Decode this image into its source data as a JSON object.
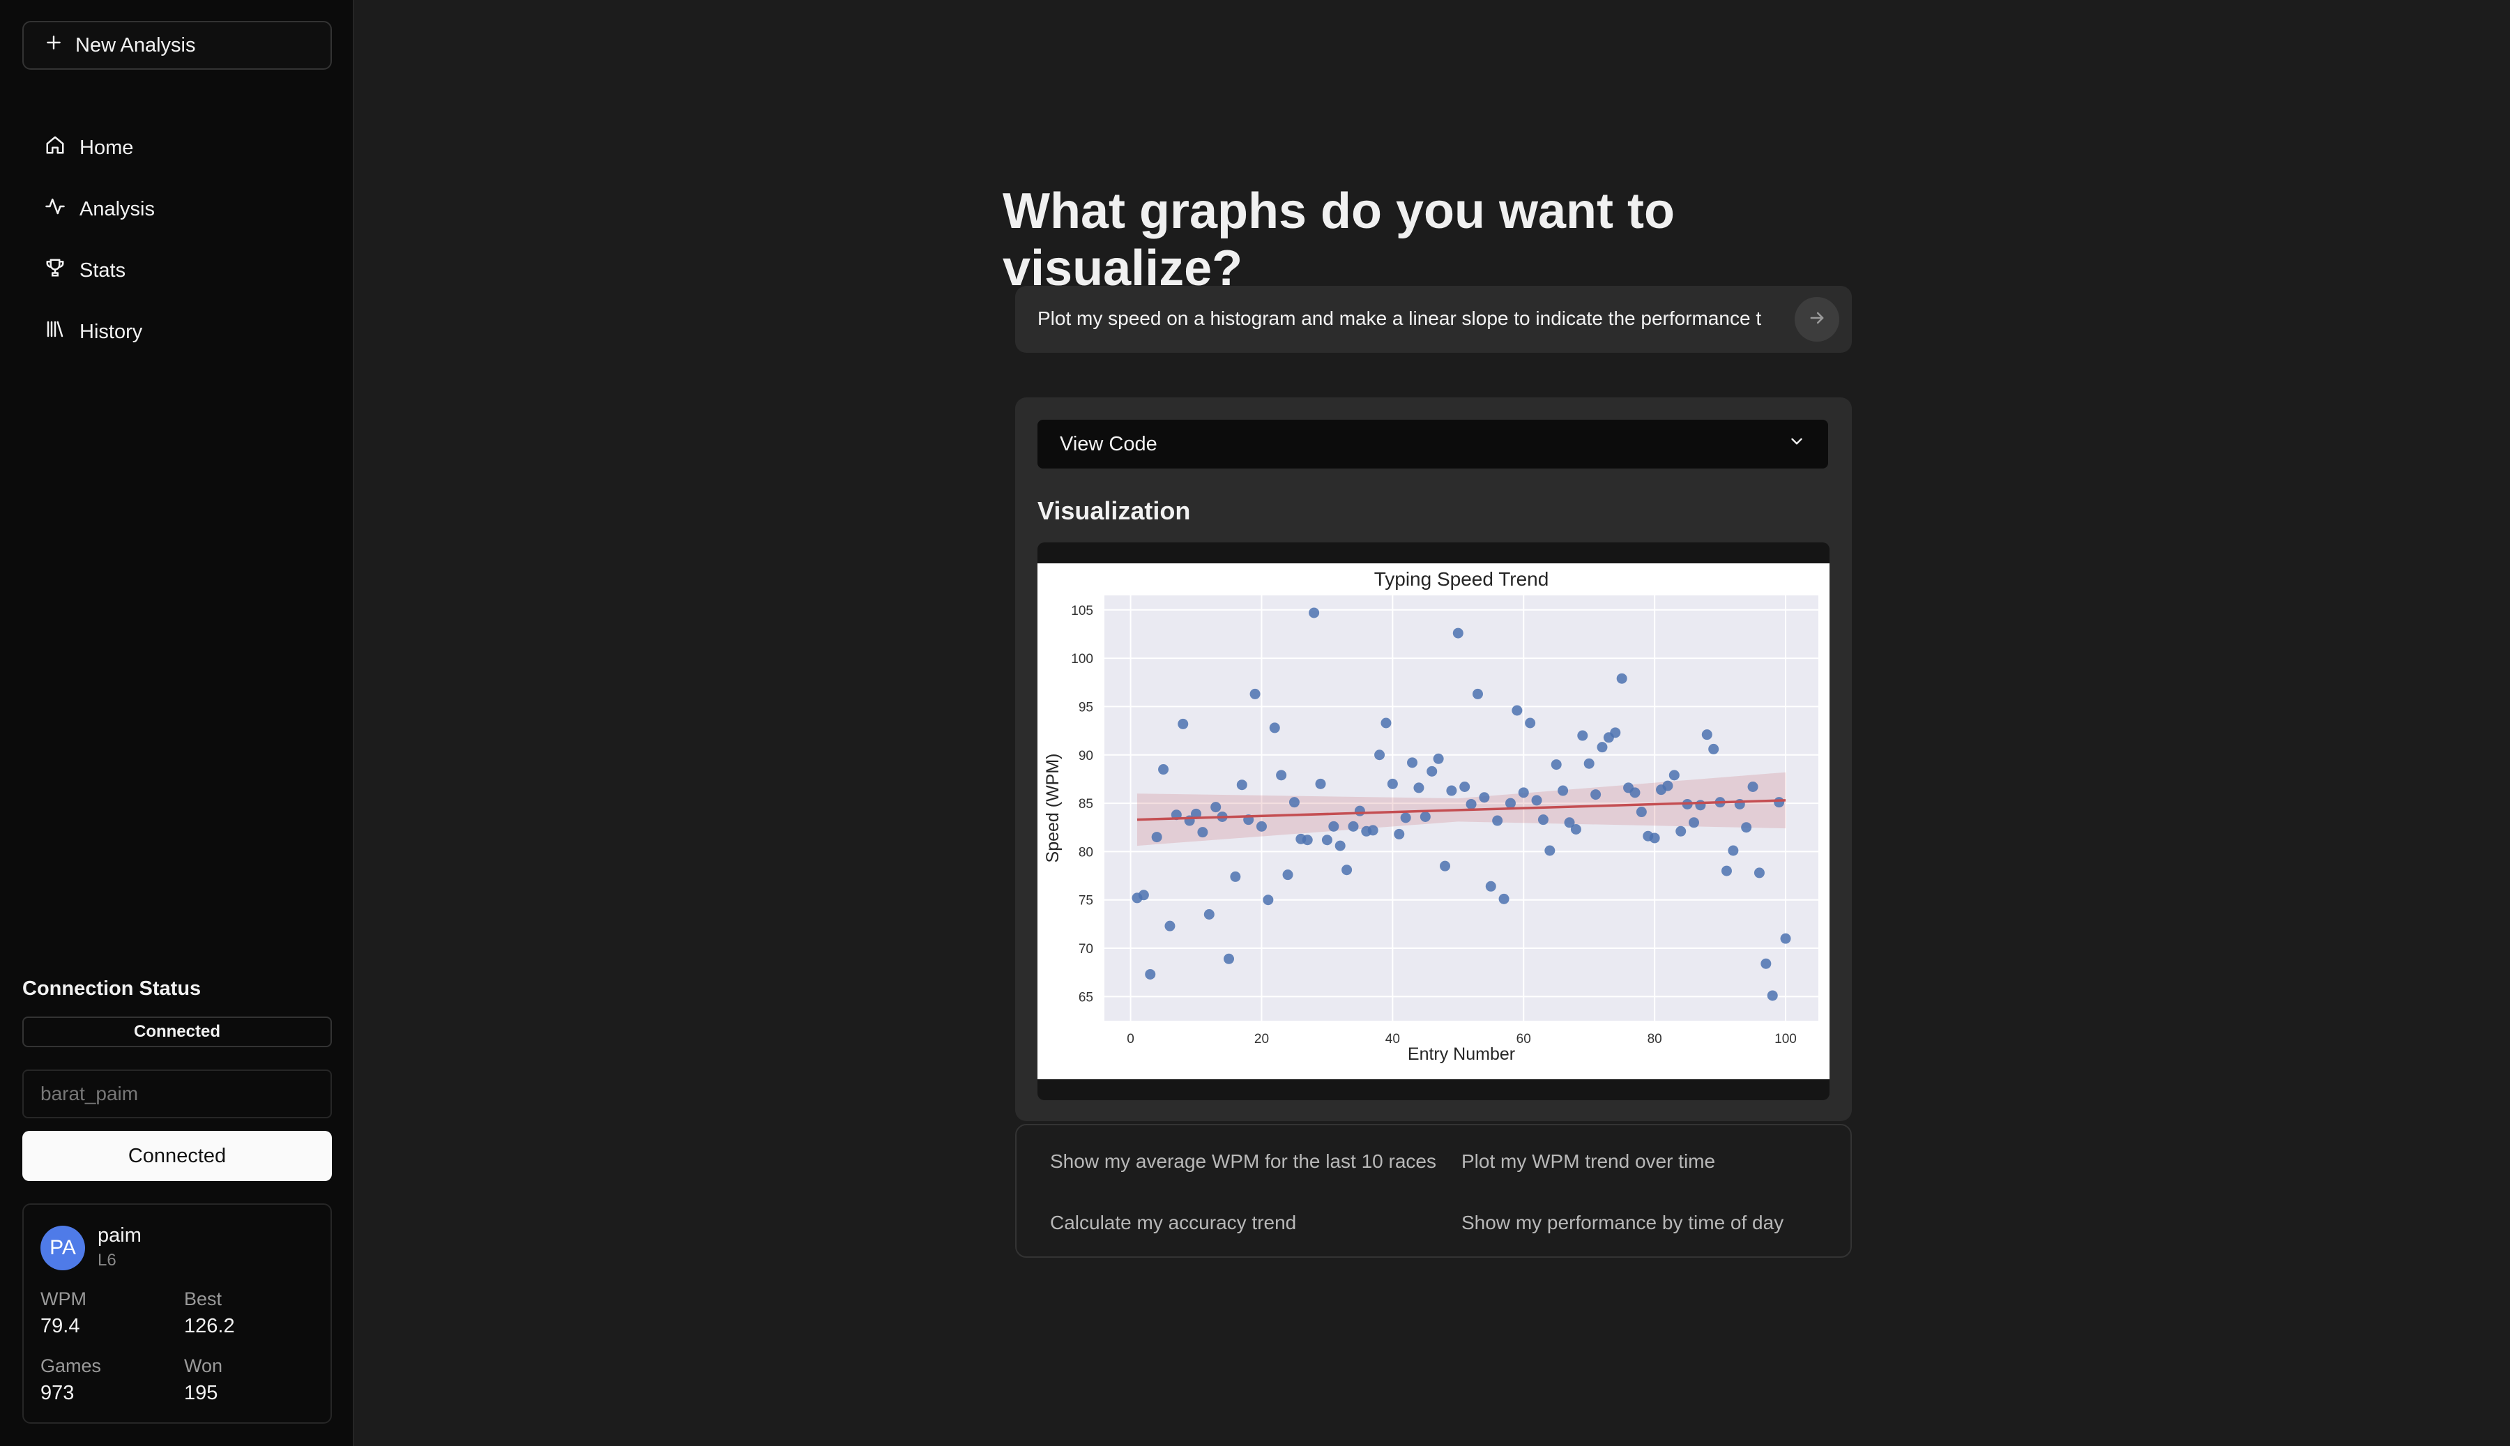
{
  "sidebar": {
    "new_analysis": "New Analysis",
    "nav": [
      {
        "label": "Home",
        "icon": "home-icon"
      },
      {
        "label": "Analysis",
        "icon": "activity-icon"
      },
      {
        "label": "Stats",
        "icon": "trophy-icon"
      },
      {
        "label": "History",
        "icon": "library-icon"
      }
    ],
    "connection": {
      "title": "Connection Status",
      "status": "Connected",
      "username_value": "barat_paim",
      "button": "Connected"
    },
    "profile": {
      "initials": "PA",
      "name": "paim",
      "level": "L6",
      "stats": [
        {
          "label": "WPM",
          "value": "79.4"
        },
        {
          "label": "Best",
          "value": "126.2"
        },
        {
          "label": "Games",
          "value": "973"
        },
        {
          "label": "Won",
          "value": "195"
        }
      ]
    }
  },
  "main": {
    "headline": "What graphs do you want to visualize?",
    "query": "Plot my speed on a histogram and make a linear slope to indicate the performance trend",
    "view_code": "View Code",
    "viz_title": "Visualization",
    "suggestions": [
      "Show my average WPM for the last 10 races",
      "Plot my WPM trend over time",
      "Calculate my accuracy trend",
      "Show my performance by time of day"
    ]
  },
  "colors": {
    "accent_avatar": "#4f7be8",
    "point": "#4c72b0",
    "trend_line": "#c44e52"
  },
  "chart_data": {
    "type": "scatter",
    "title": "Typing Speed Trend",
    "xlabel": "Entry Number",
    "ylabel": "Speed (WPM)",
    "xlim": [
      -4,
      105
    ],
    "ylim": [
      62.5,
      106.5
    ],
    "xticks": [
      0,
      20,
      40,
      60,
      80,
      100
    ],
    "yticks": [
      65,
      70,
      75,
      80,
      85,
      90,
      95,
      100,
      105
    ],
    "grid": true,
    "x": [
      1,
      2,
      3,
      4,
      5,
      6,
      7,
      8,
      9,
      10,
      11,
      12,
      13,
      14,
      15,
      16,
      17,
      18,
      19,
      20,
      21,
      22,
      23,
      24,
      25,
      26,
      27,
      28,
      29,
      30,
      31,
      32,
      33,
      34,
      35,
      36,
      37,
      38,
      39,
      40,
      41,
      42,
      43,
      44,
      45,
      46,
      47,
      48,
      49,
      50,
      51,
      52,
      53,
      54,
      55,
      56,
      57,
      58,
      59,
      60,
      61,
      62,
      63,
      64,
      65,
      66,
      67,
      68,
      69,
      70,
      71,
      72,
      73,
      74,
      75,
      76,
      77,
      78,
      79,
      80,
      81,
      82,
      83,
      84,
      85,
      86,
      87,
      88,
      89,
      90,
      91,
      92,
      93,
      94,
      95,
      96,
      97,
      98,
      99,
      100
    ],
    "y": [
      75.2,
      75.5,
      67.3,
      81.5,
      88.5,
      72.3,
      83.8,
      93.2,
      83.2,
      83.9,
      82.0,
      73.5,
      84.6,
      83.6,
      68.9,
      77.4,
      86.9,
      83.3,
      96.3,
      82.6,
      75.0,
      92.8,
      87.9,
      77.6,
      85.1,
      81.3,
      81.2,
      104.7,
      87.0,
      81.2,
      82.6,
      80.6,
      78.1,
      82.6,
      84.2,
      82.1,
      82.2,
      90.0,
      93.3,
      87.0,
      81.8,
      83.5,
      89.2,
      86.6,
      83.6,
      88.3,
      89.6,
      78.5,
      86.3,
      102.6,
      86.7,
      84.9,
      96.3,
      85.6,
      76.4,
      83.2,
      75.1,
      85.0,
      94.6,
      86.1,
      93.3,
      85.3,
      83.3,
      80.1,
      89.0,
      86.3,
      83.0,
      82.3,
      92.0,
      89.1,
      85.9,
      90.8,
      91.8,
      92.3,
      97.9,
      86.6,
      86.1,
      84.1,
      81.6,
      81.4,
      86.4,
      86.8,
      87.9,
      82.1,
      84.9,
      83.0,
      84.8,
      92.1,
      90.6,
      85.1,
      78.0,
      80.1,
      84.9,
      82.5,
      86.7,
      77.8,
      68.4,
      65.1,
      85.1,
      71.0
    ],
    "trend": {
      "x": [
        1,
        100
      ],
      "y": [
        83.3,
        85.3
      ]
    },
    "confidence_band": {
      "x": [
        1,
        50,
        100
      ],
      "upper": [
        86.0,
        85.5,
        88.2
      ],
      "lower": [
        80.6,
        83.1,
        82.4
      ]
    }
  }
}
